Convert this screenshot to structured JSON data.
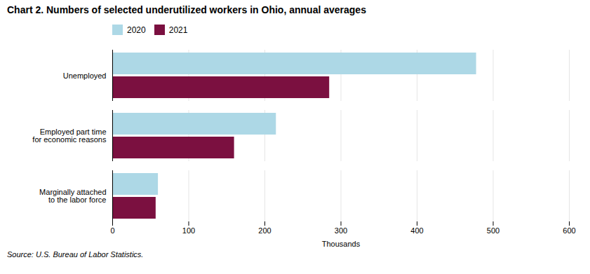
{
  "chart_data": {
    "type": "bar",
    "orientation": "horizontal",
    "title": "Chart 2. Numbers of selected underutilized workers in Ohio, annual averages",
    "categories": [
      "Unemployed",
      "Employed part time\nfor economic reasons",
      "Marginally attached\nto the labor force"
    ],
    "series": [
      {
        "name": "2020",
        "color": "#add8e6",
        "values": [
          478,
          215,
          60
        ]
      },
      {
        "name": "2021",
        "color": "#7b1040",
        "values": [
          285,
          160,
          57
        ]
      }
    ],
    "xlabel": "Thousands",
    "xlim": [
      0,
      600
    ],
    "xticks": [
      0,
      100,
      200,
      300,
      400,
      500,
      600
    ],
    "grid": true,
    "legend": "top",
    "caption": "Source: U.S. Bureau of Labor Statistics."
  }
}
